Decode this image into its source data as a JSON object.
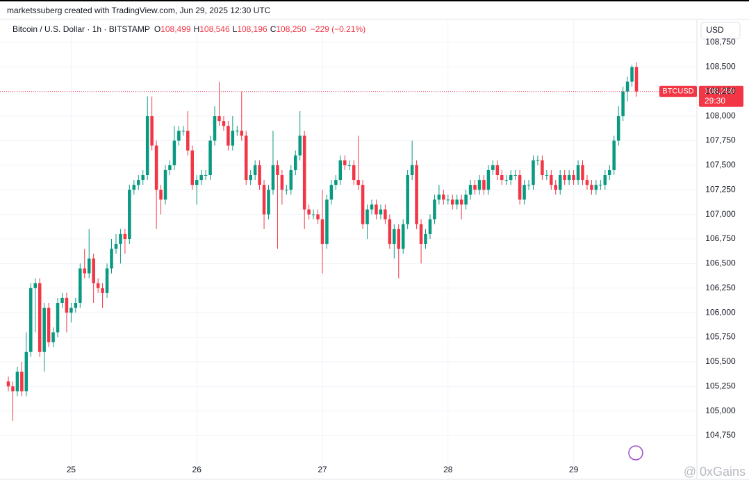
{
  "chart_data": {
    "type": "candlestick",
    "header": "marketssuberg created with TradingView.com, Jun 29, 2025 12:30 UTC",
    "symbol": "Bitcoin / U.S. Dollar · 1h · BITSTAMP",
    "legend_ohlc": [
      {
        "key": "O",
        "value": 108499,
        "label": "108,499"
      },
      {
        "key": "H",
        "value": 108546,
        "label": "108,546"
      },
      {
        "key": "L",
        "value": 108196,
        "label": "108,196"
      },
      {
        "key": "C",
        "value": 108250,
        "label": "108,250"
      }
    ],
    "change": "−229 (−0.21%)",
    "currency": "USD",
    "last_price": {
      "symbol": "BTCUSD",
      "value": 108250,
      "label": "108,250",
      "countdown": "29:30"
    },
    "watermark": "@ 0xGains",
    "up_color": "#089981",
    "down_color": "#f23645",
    "grid": true,
    "ylim": [
      104305,
      108983
    ],
    "yticks": [
      {
        "value": 104750,
        "label": "104,750"
      },
      {
        "value": 105000,
        "label": "105,000"
      },
      {
        "value": 105250,
        "label": "105,250"
      },
      {
        "value": 105500,
        "label": "105,500"
      },
      {
        "value": 105750,
        "label": "105,750"
      },
      {
        "value": 106000,
        "label": "106,000"
      },
      {
        "value": 106250,
        "label": "106,250"
      },
      {
        "value": 106500,
        "label": "106,500"
      },
      {
        "value": 106750,
        "label": "106,750"
      },
      {
        "value": 107000,
        "label": "107,000"
      },
      {
        "value": 107250,
        "label": "107,250"
      },
      {
        "value": 107500,
        "label": "107,500"
      },
      {
        "value": 107750,
        "label": "107,750"
      },
      {
        "value": 108000,
        "label": "108,000"
      },
      {
        "value": 108250,
        "label": "108,250"
      },
      {
        "value": 108500,
        "label": "108,500"
      },
      {
        "value": 108750,
        "label": "108,750"
      }
    ],
    "categories": [
      null,
      null,
      null,
      null,
      null,
      null,
      null,
      null,
      null,
      null,
      null,
      null,
      null,
      null,
      "25",
      null,
      null,
      null,
      null,
      null,
      null,
      null,
      null,
      null,
      null,
      null,
      null,
      null,
      null,
      null,
      null,
      null,
      null,
      null,
      null,
      null,
      null,
      null,
      null,
      null,
      null,
      null,
      "26",
      null,
      null,
      null,
      null,
      null,
      null,
      null,
      null,
      null,
      null,
      null,
      null,
      null,
      null,
      null,
      null,
      null,
      null,
      null,
      null,
      null,
      null,
      null,
      null,
      null,
      null,
      null,
      "27",
      null,
      null,
      null,
      null,
      null,
      null,
      null,
      null,
      null,
      null,
      null,
      null,
      null,
      null,
      null,
      null,
      null,
      null,
      null,
      null,
      null,
      null,
      null,
      null,
      null,
      null,
      null,
      "28",
      null,
      null,
      null,
      null,
      null,
      null,
      null,
      null,
      null,
      null,
      null,
      null,
      null,
      null,
      null,
      null,
      null,
      null,
      null,
      null,
      null,
      null,
      null,
      null,
      null,
      null,
      null,
      "29",
      null,
      null,
      null,
      null,
      null,
      null,
      null,
      null,
      null,
      null,
      null,
      null,
      null,
      null
    ],
    "open": [
      105300,
      105250,
      105200,
      105400,
      105200,
      105600,
      106250,
      106300,
      105600,
      106050,
      105700,
      105800,
      106100,
      106150,
      106000,
      106050,
      106100,
      106450,
      106400,
      106550,
      106300,
      106250,
      106200,
      106450,
      106650,
      106700,
      106800,
      106750,
      107250,
      107300,
      107350,
      107400,
      108000,
      107700,
      107250,
      107150,
      107450,
      107500,
      107750,
      107850,
      107850,
      107650,
      107300,
      107350,
      107400,
      107400,
      107750,
      108000,
      107950,
      107900,
      107700,
      107850,
      107850,
      107800,
      107350,
      107400,
      107500,
      107300,
      107000,
      107250,
      107500,
      107400,
      107250,
      107250,
      107450,
      107600,
      107800,
      107050,
      107000,
      107000,
      106950,
      106700,
      107150,
      107300,
      107350,
      107550,
      107500,
      107500,
      107350,
      107300,
      106900,
      107050,
      107100,
      107000,
      107050,
      106950,
      106700,
      106850,
      106650,
      106900,
      107400,
      107500,
      106900,
      106700,
      106800,
      106950,
      107150,
      107200,
      107150,
      107150,
      107100,
      107150,
      107100,
      107200,
      107300,
      107250,
      107350,
      107250,
      107450,
      107500,
      107400,
      107350,
      107350,
      107400,
      107400,
      107150,
      107300,
      107300,
      107550,
      107550,
      107400,
      107400,
      107300,
      107250,
      107400,
      107350,
      107400,
      107350,
      107500,
      107350,
      107300,
      107250,
      107300,
      107300,
      107400,
      107450,
      107750,
      108000,
      108250,
      108350,
      108499
    ],
    "high": [
      105350,
      105300,
      105450,
      105500,
      105800,
      106300,
      106350,
      106350,
      106100,
      106100,
      105850,
      106150,
      106200,
      106200,
      106100,
      106150,
      106500,
      106650,
      106850,
      106600,
      106350,
      106300,
      106500,
      106750,
      106800,
      106850,
      106850,
      107300,
      107350,
      107400,
      107450,
      108200,
      108200,
      107750,
      107300,
      107500,
      107550,
      107900,
      107900,
      107900,
      108050,
      107700,
      107400,
      107450,
      107450,
      107800,
      108100,
      108350,
      108000,
      107950,
      108000,
      107900,
      108250,
      107850,
      107450,
      107550,
      107550,
      107350,
      107300,
      107850,
      107550,
      107450,
      107300,
      107500,
      107650,
      108050,
      107850,
      107100,
      107050,
      107050,
      107250,
      107200,
      107350,
      107400,
      107600,
      107600,
      107550,
      107550,
      107800,
      107350,
      107100,
      107150,
      107150,
      107100,
      107100,
      107000,
      106900,
      106900,
      106950,
      107450,
      107750,
      107550,
      106950,
      106850,
      107000,
      107200,
      107300,
      107250,
      107200,
      107200,
      107200,
      107200,
      107250,
      107350,
      107350,
      107400,
      107400,
      107500,
      107550,
      107550,
      107450,
      107400,
      107450,
      107450,
      107450,
      107350,
      107350,
      107600,
      107600,
      107600,
      107450,
      107450,
      107350,
      107450,
      107450,
      107450,
      107450,
      107550,
      107550,
      107400,
      107350,
      107350,
      107350,
      107450,
      107500,
      107800,
      108100,
      108300,
      108400,
      108520,
      108546
    ],
    "low": [
      105200,
      104900,
      105150,
      105150,
      105150,
      105550,
      105800,
      105550,
      105400,
      105650,
      105650,
      105750,
      106050,
      105800,
      105900,
      106000,
      106050,
      106350,
      106350,
      106100,
      106200,
      106050,
      106150,
      106400,
      106600,
      106500,
      106600,
      106700,
      107200,
      107250,
      107300,
      107350,
      107650,
      106850,
      107000,
      107100,
      107400,
      107450,
      107700,
      107800,
      107600,
      107250,
      107100,
      107300,
      107350,
      107350,
      107700,
      107900,
      107850,
      107650,
      107650,
      107800,
      107750,
      107300,
      107300,
      107350,
      107250,
      106850,
      106950,
      107200,
      106650,
      107100,
      107200,
      107200,
      107400,
      107550,
      106850,
      106950,
      106950,
      106900,
      106400,
      106650,
      107100,
      107250,
      107300,
      107450,
      107450,
      107300,
      107250,
      106850,
      106750,
      107000,
      106950,
      106950,
      106900,
      106650,
      106550,
      106350,
      106600,
      106850,
      107350,
      106850,
      106500,
      106650,
      106750,
      106900,
      107100,
      107100,
      107100,
      107050,
      107050,
      106950,
      107050,
      107150,
      107200,
      107200,
      107200,
      107200,
      107400,
      107350,
      107300,
      107300,
      107300,
      107350,
      107100,
      107100,
      107250,
      107250,
      107500,
      107350,
      107350,
      107250,
      107200,
      107200,
      107300,
      107300,
      107300,
      107300,
      107300,
      107250,
      107200,
      107200,
      107250,
      107250,
      107350,
      107400,
      107700,
      107950,
      108150,
      108300,
      108196
    ],
    "close": [
      105250,
      105200,
      105400,
      105200,
      105600,
      106250,
      106300,
      105600,
      106050,
      105700,
      105800,
      106100,
      106150,
      106000,
      106050,
      106100,
      106450,
      106400,
      106550,
      106300,
      106250,
      106200,
      106450,
      106650,
      106700,
      106800,
      106750,
      107250,
      107300,
      107350,
      107400,
      108000,
      107700,
      107250,
      107150,
      107450,
      107500,
      107750,
      107850,
      107850,
      107650,
      107300,
      107350,
      107400,
      107400,
      107750,
      108000,
      107950,
      107900,
      107700,
      107850,
      107850,
      107800,
      107350,
      107400,
      107500,
      107300,
      107000,
      107250,
      107500,
      107400,
      107250,
      107250,
      107450,
      107600,
      107800,
      107050,
      107000,
      107000,
      106950,
      106700,
      107150,
      107300,
      107350,
      107550,
      107500,
      107500,
      107350,
      107300,
      106900,
      107050,
      107100,
      107000,
      107050,
      106950,
      106700,
      106850,
      106650,
      106900,
      107400,
      107500,
      106900,
      106700,
      106800,
      106950,
      107150,
      107200,
      107150,
      107150,
      107100,
      107150,
      107100,
      107200,
      107300,
      107250,
      107350,
      107250,
      107450,
      107500,
      107400,
      107350,
      107350,
      107400,
      107400,
      107150,
      107300,
      107300,
      107550,
      107550,
      107400,
      107400,
      107300,
      107250,
      107400,
      107350,
      107400,
      107350,
      107500,
      107350,
      107300,
      107250,
      107300,
      107300,
      107400,
      107450,
      107750,
      108000,
      108250,
      108350,
      108499,
      108250
    ]
  }
}
